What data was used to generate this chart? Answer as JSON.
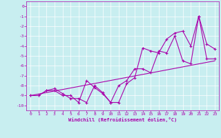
{
  "xlabel": "Windchill (Refroidissement éolien,°C)",
  "background_color": "#c8eef0",
  "line_color": "#aa00aa",
  "xlim": [
    -0.5,
    23.5
  ],
  "ylim": [
    -10.5,
    0.5
  ],
  "xticks": [
    0,
    1,
    2,
    3,
    4,
    5,
    6,
    7,
    8,
    9,
    10,
    11,
    12,
    13,
    14,
    15,
    16,
    17,
    18,
    19,
    20,
    21,
    22,
    23
  ],
  "yticks": [
    0,
    -1,
    -2,
    -3,
    -4,
    -5,
    -6,
    -7,
    -8,
    -9,
    -10
  ],
  "line1_x": [
    0,
    1,
    2,
    3,
    4,
    5,
    6,
    7,
    8,
    9,
    10,
    11,
    12,
    13,
    14,
    15,
    16,
    17,
    18,
    19,
    20,
    21,
    22,
    23
  ],
  "line1_y": [
    -9.0,
    -9.0,
    -8.5,
    -8.5,
    -9.0,
    -9.0,
    -9.7,
    -7.5,
    -8.2,
    -8.8,
    -9.7,
    -9.7,
    -7.8,
    -7.2,
    -4.2,
    -4.5,
    -4.7,
    -3.3,
    -2.7,
    -2.5,
    -4.0,
    -1.0,
    -3.8,
    -4.3
  ],
  "line2_x": [
    0,
    1,
    2,
    3,
    4,
    5,
    6,
    7,
    8,
    9,
    10,
    11,
    12,
    13,
    14,
    15,
    16,
    17,
    18,
    19,
    20,
    21,
    22,
    23
  ],
  "line2_y": [
    -9.0,
    -9.0,
    -8.5,
    -8.3,
    -8.8,
    -9.3,
    -9.3,
    -9.7,
    -8.0,
    -8.7,
    -9.7,
    -8.0,
    -7.5,
    -6.3,
    -6.3,
    -6.7,
    -4.5,
    -4.7,
    -3.0,
    -5.5,
    -5.8,
    -1.0,
    -5.3,
    -5.3
  ],
  "line3_x": [
    0,
    23
  ],
  "line3_y": [
    -9.0,
    -5.5
  ]
}
